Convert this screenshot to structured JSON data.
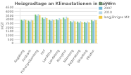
{
  "chart_data": {
    "type": "bar",
    "title": "Heizgradtage an Klimastationen in Bayern",
    "ylabel": "HGT",
    "categories": [
      "Augsburg",
      "Ansbach",
      "Hohenpeißenberg",
      "Hof",
      "Landshut",
      "Landsberg",
      "Kempten",
      "Nürnberg",
      "Regensburg",
      "Straubing",
      "Weiden"
    ],
    "series": [
      {
        "name": "2005",
        "color": "#70c070",
        "values": [
          3021,
          2880,
          3650,
          3280,
          2980,
          3050,
          3280,
          2820,
          2760,
          2730,
          2970
        ]
      },
      {
        "name": "2007",
        "color": "#70b8d8",
        "values": [
          2880,
          2760,
          3480,
          3100,
          2850,
          2920,
          3080,
          2680,
          2620,
          2590,
          2820
        ]
      },
      {
        "name": "2010",
        "color": "#b8d8e8",
        "values": [
          3080,
          2980,
          3700,
          3320,
          3050,
          3180,
          3380,
          2880,
          2820,
          2780,
          3020
        ]
      },
      {
        "name": "langjähriges Mittel",
        "color": "#f0c840",
        "values": [
          2970,
          2890,
          3580,
          3180,
          2940,
          3060,
          3240,
          2780,
          2710,
          2680,
          2930
        ]
      }
    ],
    "ylim": [
      0,
      4500
    ],
    "yticks": [
      0,
      500,
      1000,
      1500,
      2000,
      2500,
      3000,
      3500,
      4000,
      4500
    ],
    "grid": true,
    "legend": "upper right"
  }
}
